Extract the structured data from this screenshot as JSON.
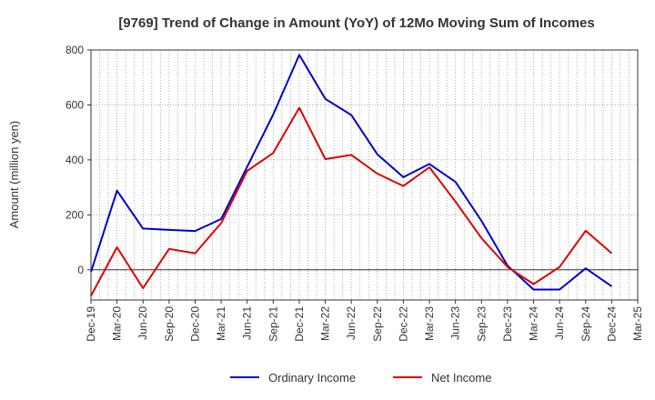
{
  "chart_data": {
    "type": "line",
    "title": "[9769]  Trend of Change in Amount (YoY) of 12Mo Moving Sum of Incomes",
    "xlabel": "",
    "ylabel": "Amount (million yen)",
    "ylim": [
      -110,
      800
    ],
    "yticks": [
      0,
      200,
      400,
      600,
      800
    ],
    "categories": [
      "Dec-19",
      "Mar-20",
      "Jun-20",
      "Sep-20",
      "Dec-20",
      "Mar-21",
      "Jun-21",
      "Sep-21",
      "Dec-21",
      "Mar-22",
      "Jun-22",
      "Sep-22",
      "Dec-22",
      "Mar-23",
      "Jun-23",
      "Sep-23",
      "Dec-23",
      "Mar-24",
      "Jun-24",
      "Sep-24",
      "Dec-24",
      "Mar-25"
    ],
    "series": [
      {
        "name": "Ordinary Income",
        "color": "#0000cc",
        "values": [
          -8,
          288,
          150,
          145,
          141,
          185,
          375,
          565,
          782,
          622,
          563,
          420,
          337,
          385,
          320,
          178,
          15,
          -72,
          -72,
          5,
          -60,
          null
        ]
      },
      {
        "name": "Net Income",
        "color": "#dd0000",
        "values": [
          -95,
          82,
          -67,
          76,
          60,
          170,
          360,
          425,
          590,
          403,
          418,
          350,
          305,
          373,
          248,
          115,
          10,
          -52,
          10,
          142,
          60,
          null
        ]
      }
    ],
    "grid": true,
    "legend": "bottom-center"
  }
}
